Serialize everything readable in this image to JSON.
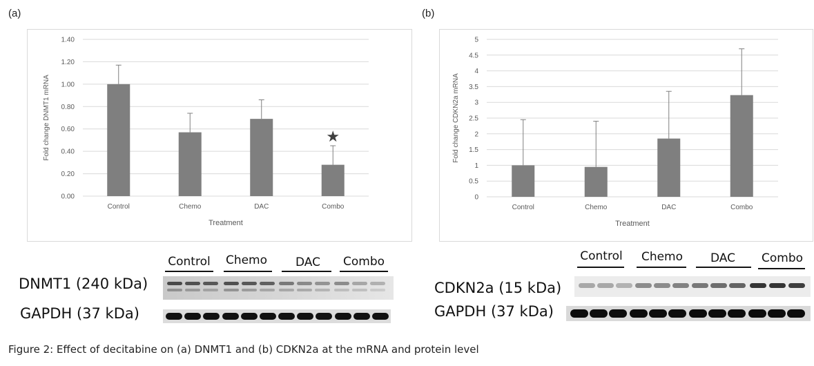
{
  "figure": {
    "caption": "Figure 2: Effect of decitabine on (a) DNMT1 and (b) CDKN2a at the mRNA and protein level"
  },
  "panel_a": {
    "label": "(a)",
    "blot": {
      "lanes": [
        "Control",
        "Chemo",
        "DAC",
        "Combo"
      ],
      "rows": [
        "DNMT1 (240 kDa)",
        "GAPDH (37 kDa)"
      ]
    },
    "significance_marker": "★"
  },
  "panel_b": {
    "label": "(b)",
    "blot": {
      "lanes": [
        "Control",
        "Chemo",
        "DAC",
        "Combo"
      ],
      "rows": [
        "CDKN2a (15 kDa)",
        "GAPDH (37 kDa)"
      ]
    }
  },
  "colors": {
    "bar": "#7f7f7f",
    "grid": "#d9d9d9",
    "axis_text": "#595959"
  },
  "chart_data": [
    {
      "id": "a",
      "type": "bar",
      "categories": [
        "Control",
        "Chemo",
        "DAC",
        "Combo"
      ],
      "values": [
        1.0,
        0.57,
        0.69,
        0.28
      ],
      "errors": [
        0.17,
        0.17,
        0.17,
        0.17
      ],
      "title": "",
      "xlabel": "Treatment",
      "ylabel": "Fold change DNMT1 mRNA",
      "ylim": [
        0,
        1.4
      ],
      "yticks": [
        "0.00",
        "0.20",
        "0.40",
        "0.60",
        "0.80",
        "1.00",
        "1.20",
        "1.40"
      ],
      "annotation": {
        "category": "Combo",
        "text": "★"
      },
      "grid": true
    },
    {
      "id": "b",
      "type": "bar",
      "categories": [
        "Control",
        "Chemo",
        "DAC",
        "Combo"
      ],
      "values": [
        1.0,
        0.95,
        1.85,
        3.23
      ],
      "errors": [
        1.45,
        1.45,
        1.5,
        1.47
      ],
      "title": "",
      "xlabel": "Treatment",
      "ylabel": "Fold change CDKN2a mRNA",
      "ylim": [
        0,
        5
      ],
      "yticks": [
        "0",
        "0.5",
        "1",
        "1.5",
        "2",
        "2.5",
        "3",
        "3.5",
        "4",
        "4.5",
        "5"
      ],
      "grid": true
    }
  ]
}
